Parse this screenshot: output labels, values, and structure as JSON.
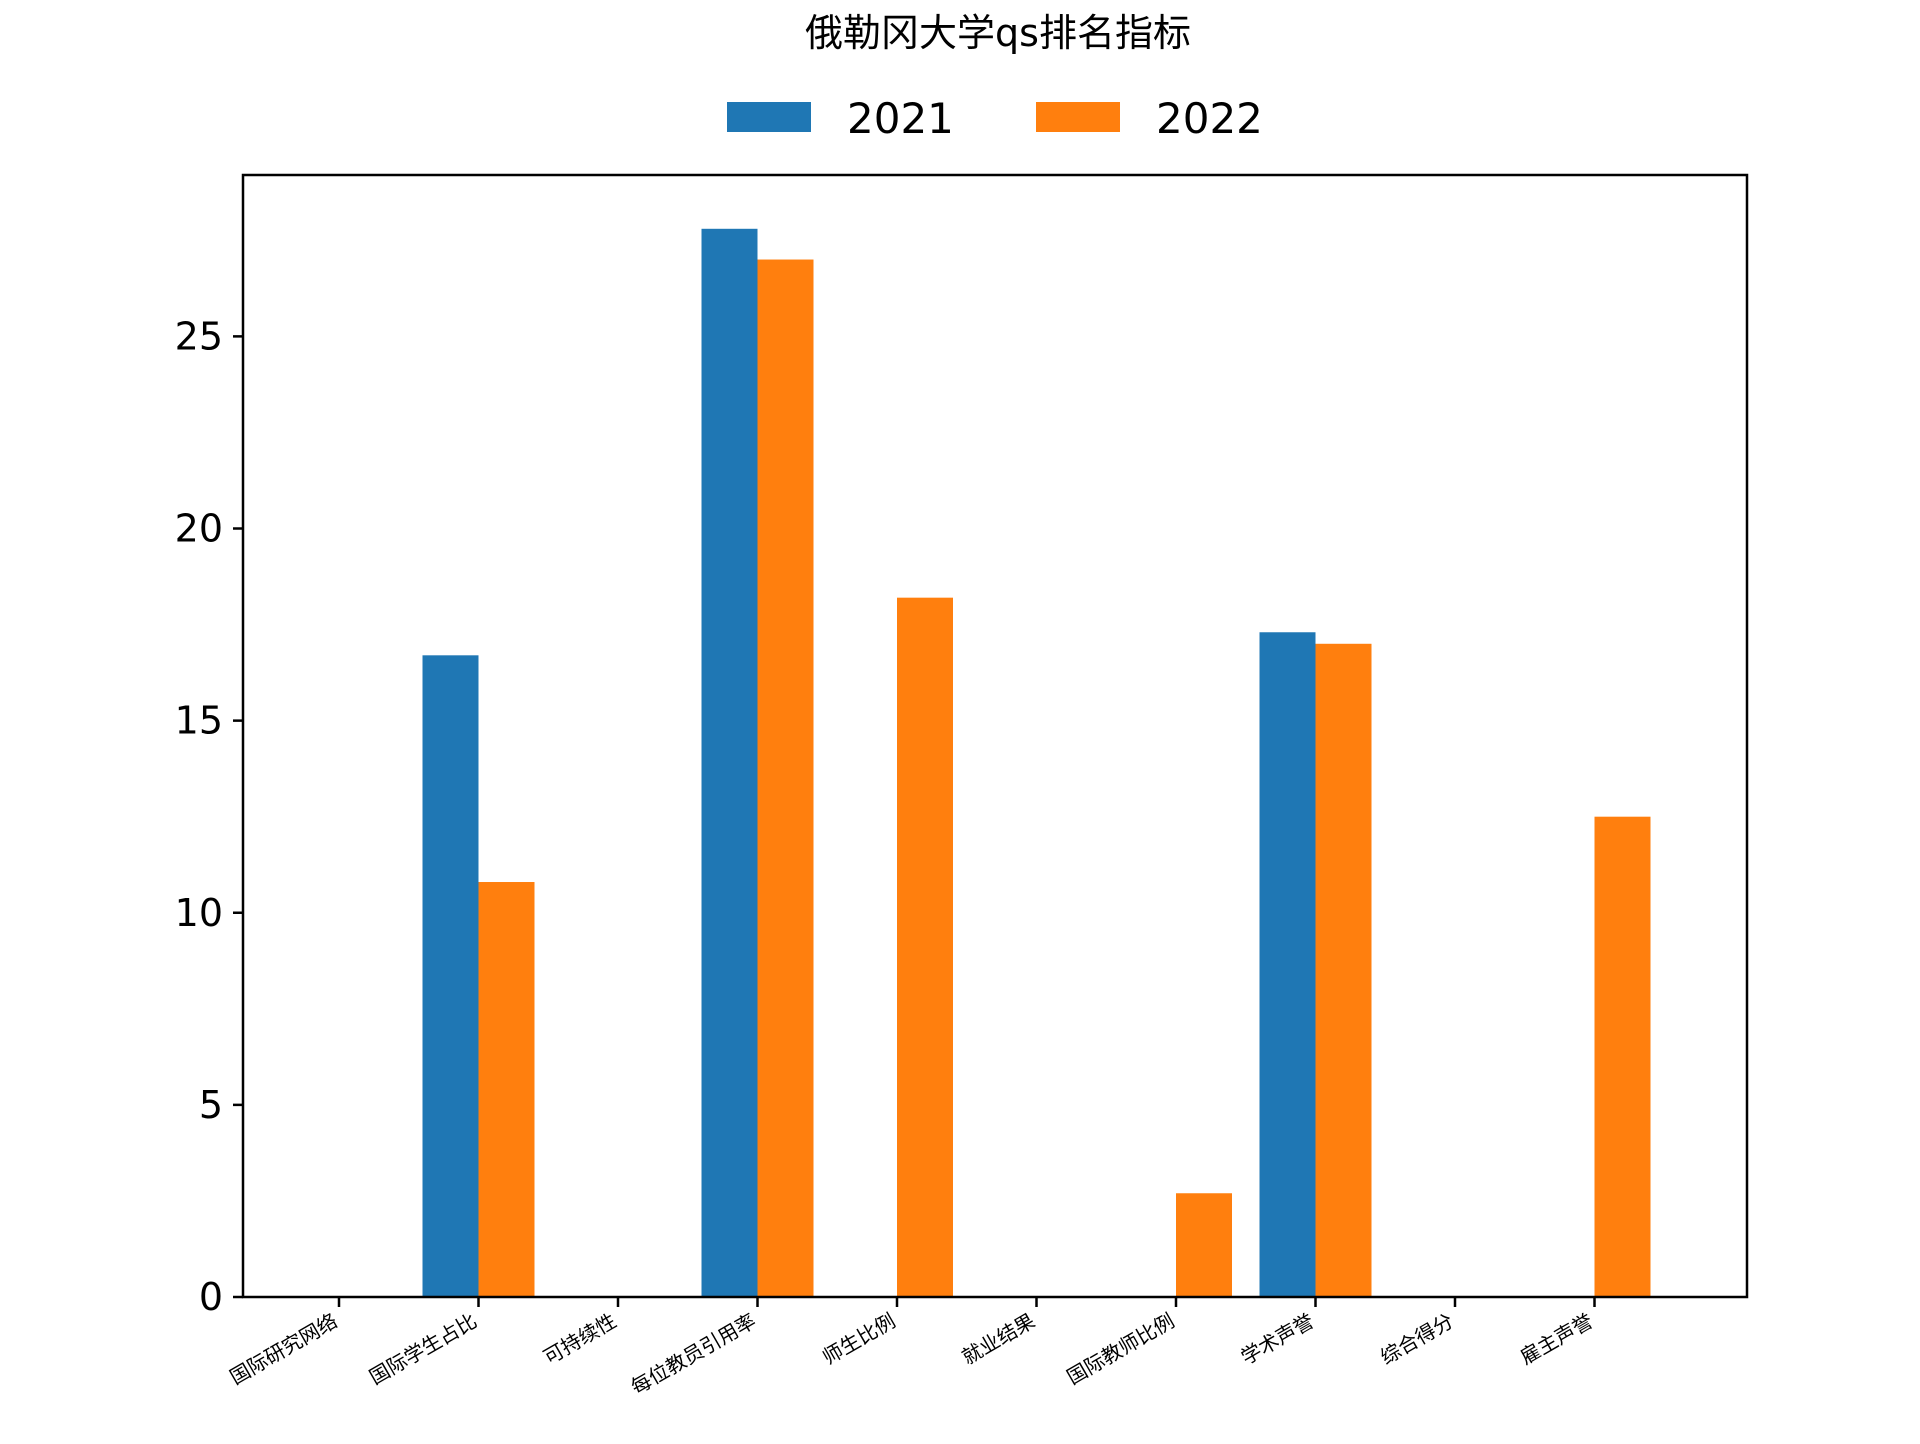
{
  "chart_data": {
    "type": "bar",
    "title": "俄勒冈大学qs排名指标",
    "xlabel": "",
    "ylabel": "",
    "categories": [
      "国际研究网络",
      "国际学生占比",
      "可持续性",
      "每位教员引用率",
      "师生比例",
      "就业结果",
      "国际教师比例",
      "学术声誉",
      "综合得分",
      "雇主声誉"
    ],
    "series": [
      {
        "name": "2021",
        "color": "#1f77b4",
        "values": [
          0,
          16.7,
          0,
          27.8,
          0,
          0,
          0,
          17.3,
          0,
          0
        ]
      },
      {
        "name": "2022",
        "color": "#ff7f0e",
        "values": [
          0,
          10.8,
          0,
          27.0,
          18.2,
          0,
          2.7,
          17.0,
          0,
          12.5
        ]
      }
    ],
    "ylim": [
      0,
      29.2
    ],
    "yticks": [
      0,
      5,
      10,
      15,
      20,
      25
    ],
    "grid": false,
    "legend_position": "top-center"
  }
}
